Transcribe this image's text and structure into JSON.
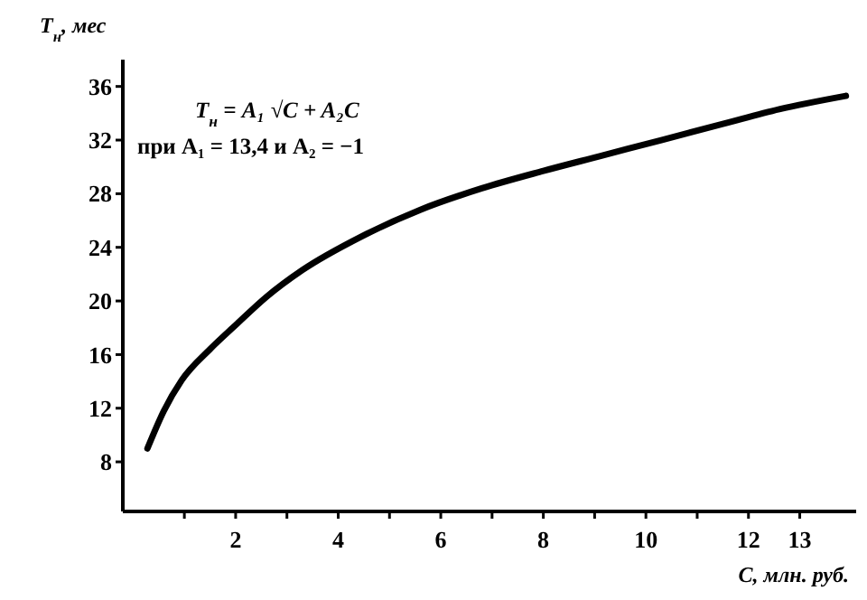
{
  "chart_data": {
    "type": "line",
    "xlabel": "C, млн. руб.",
    "ylabel": "T$_{н}$, мес",
    "annotations": [
      "T$_{н}$ = A₁ √C + A₂C",
      "при A₁ = 13,4 и A₂ = −1"
    ],
    "x": [
      0.28,
      0.6,
      0.95,
      1.5,
      2.0,
      2.6,
      3.3,
      4.45,
      5.6,
      6.8,
      8.0,
      9.1,
      10.3,
      11.5,
      12.6,
      13.9
    ],
    "series": [
      {
        "color": "#000000",
        "values": [
          9.0,
          11.8,
          14.1,
          16.4,
          18.2,
          20.3,
          22.3,
          24.8,
          26.8,
          28.4,
          29.7,
          30.8,
          32.0,
          33.2,
          34.3,
          35.3
        ]
      }
    ],
    "xlim": [
      -0.2,
      14.1
    ],
    "ylim": [
      4.3,
      38
    ],
    "xticks": [
      {
        "value": 1,
        "label": null
      },
      2,
      {
        "value": 3,
        "label": null
      },
      4,
      {
        "value": 5,
        "label": null
      },
      6,
      {
        "value": 7,
        "label": null
      },
      8,
      {
        "value": 9,
        "label": null
      },
      10,
      {
        "value": 11,
        "label": null
      },
      12,
      13
    ],
    "yticks": [
      8,
      12,
      16,
      20,
      24,
      28,
      32,
      36
    ],
    "grid": false,
    "marker": "none",
    "line_style": "solid"
  }
}
